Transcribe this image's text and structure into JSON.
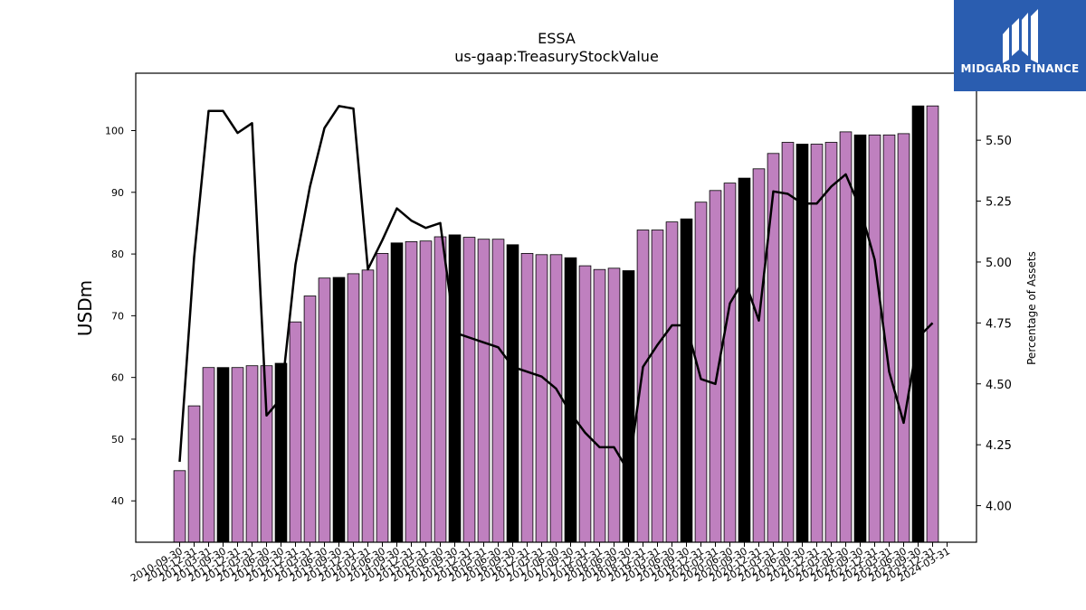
{
  "chart_data": {
    "type": "bar",
    "title": "ESSA",
    "subtitle": "us-gaap:TreasuryStockValue",
    "ylabel": "USDm",
    "y2label": "Percentage of Assets",
    "ylim": [
      33.3,
      109.3
    ],
    "y2lim": [
      3.85,
      5.775
    ],
    "yticks": [
      40,
      50,
      60,
      70,
      80,
      90,
      100
    ],
    "y2ticks": [
      4.0,
      4.25,
      4.5,
      4.75,
      5.0,
      5.25,
      5.5
    ],
    "y2tick_labels": [
      "4.00",
      "4.25",
      "4.50",
      "4.75",
      "5.00",
      "5.25",
      "5.50"
    ],
    "categories": [
      "2010-09-30",
      "2010-12-31",
      "2011-03-31",
      "2011-09-30",
      "2011-12-31",
      "2012-03-31",
      "2012-06-30",
      "2012-09-30",
      "2012-12-31",
      "2013-03-31",
      "2013-06-30",
      "2013-09-30",
      "2013-12-31",
      "2014-03-31",
      "2014-06-30",
      "2014-09-30",
      "2014-12-31",
      "2015-03-31",
      "2015-06-30",
      "2015-09-30",
      "2015-12-31",
      "2016-03-31",
      "2016-06-30",
      "2016-09-30",
      "2016-12-31",
      "2017-03-31",
      "2017-06-30",
      "2017-09-30",
      "2017-12-31",
      "2018-03-31",
      "2018-06-30",
      "2018-09-30",
      "2018-12-31",
      "2019-03-31",
      "2019-06-30",
      "2019-09-30",
      "2019-12-31",
      "2020-03-31",
      "2020-06-30",
      "2020-09-30",
      "2020-12-31",
      "2021-03-31",
      "2021-06-30",
      "2021-09-30",
      "2021-12-31",
      "2022-03-31",
      "2022-06-30",
      "2022-09-30",
      "2022-12-31",
      "2023-03-31",
      "2023-06-30",
      "2023-09-30",
      "2023-12-31",
      "2024-03-31"
    ],
    "visible_tick_labels": [
      "2010-09-30",
      "2010-12-31",
      "2011-03-31",
      "2011-09-30",
      "2011-12-31",
      "2012-03-31",
      "2012-06-30",
      "2012-09-30",
      "2012-12-31",
      "2013-03-31",
      "2013-06-30",
      "2013-09-30",
      "2013-12-31",
      "2014-03-31",
      "2014-06-30",
      "2014-09-30",
      "2014-12-31",
      "2015-03-31",
      "2015-06-30",
      "2015-09-30",
      "2015-12-31",
      "2016-03-31",
      "2016-06-30",
      "2016-09-30",
      "2016-12-31",
      "2017-03-31",
      "2017-06-30",
      "2017-09-30",
      "2017-12-31",
      "2018-03-31",
      "2018-06-30",
      "2018-09-30",
      "2018-12-31",
      "2019-03-31",
      "2019-06-30",
      "2019-09-30",
      "2019-12-31",
      "2020-03-31",
      "2020-06-30",
      "2020-09-30",
      "2020-12-31",
      "2021-03-31",
      "2021-06-30",
      "2021-09-30",
      "2021-12-31",
      "2022-03-31",
      "2022-06-30",
      "2022-09-30",
      "2022-12-31",
      "2023-03-31",
      "2023-06-30",
      "2023-09-30",
      "2023-12-31",
      "2024-03-31"
    ],
    "bar_values": [
      44.9,
      55.4,
      61.6,
      61.6,
      61.6,
      61.9,
      61.9,
      62.3,
      69.0,
      73.2,
      76.1,
      76.2,
      76.8,
      77.4,
      80.1,
      81.8,
      82.0,
      82.1,
      82.8,
      83.1,
      82.7,
      82.4,
      82.4,
      81.5,
      80.1,
      79.9,
      79.9,
      79.4,
      78.1,
      77.5,
      77.7,
      77.3,
      83.9,
      83.9,
      85.2,
      85.7,
      88.4,
      90.3,
      91.5,
      92.3,
      93.8,
      96.3,
      98.1,
      97.8,
      97.8,
      98.1,
      99.8,
      99.3,
      99.3,
      99.3,
      99.5,
      104.0,
      104.0,
      null
    ],
    "bar_is_black": [
      false,
      false,
      false,
      true,
      false,
      false,
      false,
      true,
      false,
      false,
      false,
      true,
      false,
      false,
      false,
      true,
      false,
      false,
      false,
      true,
      false,
      false,
      false,
      true,
      false,
      false,
      false,
      true,
      false,
      false,
      false,
      true,
      false,
      false,
      false,
      true,
      false,
      false,
      false,
      true,
      false,
      false,
      false,
      true,
      false,
      false,
      false,
      true,
      false,
      false,
      false,
      true,
      false,
      false
    ],
    "line_values": [
      4.18,
      5.02,
      5.62,
      5.62,
      5.53,
      5.57,
      4.37,
      4.44,
      4.99,
      5.31,
      5.55,
      5.64,
      5.63,
      4.97,
      5.09,
      5.22,
      5.17,
      5.14,
      5.16,
      4.71,
      4.69,
      4.67,
      4.65,
      4.57,
      4.55,
      4.53,
      4.48,
      4.38,
      4.3,
      4.24,
      4.24,
      4.14,
      4.57,
      4.66,
      4.74,
      4.74,
      4.52,
      4.5,
      4.83,
      4.93,
      4.76,
      5.29,
      5.28,
      5.24,
      5.24,
      5.31,
      5.36,
      5.22,
      5.01,
      4.55,
      4.34,
      4.69,
      4.75,
      null
    ],
    "colors": {
      "bar": "#bf80bf",
      "bar_alt": "#000000",
      "line": "#000000"
    }
  },
  "logo": {
    "text": "MIDGARD FINANCE"
  }
}
